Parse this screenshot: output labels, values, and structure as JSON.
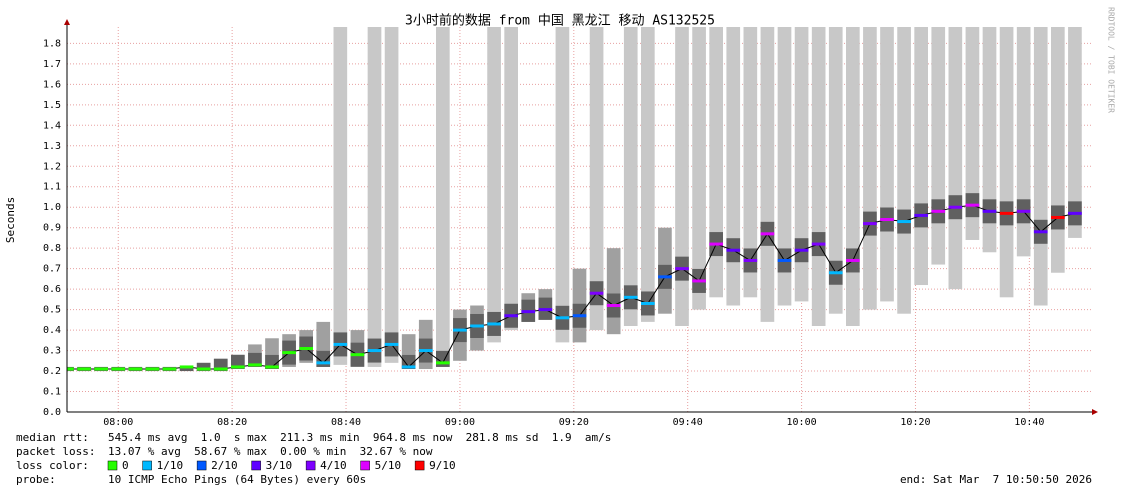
{
  "chart_data": {
    "type": "smokeping",
    "title": "3小时前的数据 from 中国 黑龙江 移动 AS132525",
    "y_label": "Seconds",
    "watermark": "RRDTOOL / TOBI OETIKER",
    "xlim": [
      "07:51",
      "10:51"
    ],
    "xticks": [
      "08:00",
      "08:20",
      "08:40",
      "09:00",
      "09:20",
      "09:40",
      "10:00",
      "10:20",
      "10:40"
    ],
    "ylim": [
      0,
      1.88
    ],
    "yticks": [
      {
        "value": 0,
        "label": "0.0"
      },
      0.1,
      0.2,
      0.3,
      0.4,
      0.5,
      0.6,
      0.7,
      0.8,
      0.9,
      {
        "value": 1,
        "label": "1.0"
      },
      1.1,
      1.2,
      1.3,
      1.4,
      1.5,
      1.6,
      1.7,
      1.8
    ],
    "grid": true,
    "x": [
      "07:51",
      "07:54",
      "07:57",
      "08:00",
      "08:03",
      "08:06",
      "08:09",
      "08:12",
      "08:15",
      "08:18",
      "08:21",
      "08:24",
      "08:27",
      "08:30",
      "08:33",
      "08:36",
      "08:39",
      "08:42",
      "08:45",
      "08:48",
      "08:51",
      "08:54",
      "08:57",
      "09:00",
      "09:03",
      "09:06",
      "09:09",
      "09:12",
      "09:15",
      "09:18",
      "09:21",
      "09:24",
      "09:27",
      "09:30",
      "09:33",
      "09:36",
      "09:39",
      "09:42",
      "09:45",
      "09:48",
      "09:51",
      "09:54",
      "09:57",
      "10:00",
      "10:03",
      "10:06",
      "10:09",
      "10:12",
      "10:15",
      "10:18",
      "10:21",
      "10:24",
      "10:27",
      "10:30",
      "10:33",
      "10:36",
      "10:39",
      "10:42",
      "10:45",
      "10:48"
    ],
    "median": [
      0.21,
      0.21,
      0.21,
      0.21,
      0.21,
      0.21,
      0.21,
      0.22,
      0.21,
      0.21,
      0.22,
      0.23,
      0.22,
      0.29,
      0.31,
      0.24,
      0.33,
      0.28,
      0.3,
      0.33,
      0.22,
      0.3,
      0.24,
      0.4,
      0.42,
      0.43,
      0.47,
      0.49,
      0.5,
      0.46,
      0.47,
      0.58,
      0.52,
      0.56,
      0.53,
      0.66,
      0.7,
      0.64,
      0.82,
      0.79,
      0.74,
      0.87,
      0.74,
      0.79,
      0.82,
      0.68,
      0.74,
      0.92,
      0.94,
      0.93,
      0.96,
      0.98,
      1.0,
      1.01,
      0.98,
      0.97,
      0.98,
      0.88,
      0.95,
      0.97
    ],
    "min": [
      0.2,
      0.2,
      0.2,
      0.2,
      0.2,
      0.2,
      0.2,
      0.2,
      0.2,
      0.2,
      0.21,
      0.22,
      0.21,
      0.22,
      0.24,
      0.22,
      0.23,
      0.22,
      0.22,
      0.24,
      0.21,
      0.21,
      0.22,
      0.25,
      0.3,
      0.34,
      0.4,
      0.44,
      0.45,
      0.34,
      0.34,
      0.4,
      0.38,
      0.42,
      0.44,
      0.48,
      0.42,
      0.5,
      0.56,
      0.52,
      0.56,
      0.44,
      0.52,
      0.54,
      0.42,
      0.48,
      0.42,
      0.5,
      0.54,
      0.48,
      0.62,
      0.72,
      0.6,
      0.84,
      0.78,
      0.56,
      0.76,
      0.52,
      0.68,
      0.85
    ],
    "max": [
      0.22,
      0.22,
      0.22,
      0.22,
      0.22,
      0.22,
      0.22,
      0.22,
      0.24,
      0.26,
      0.28,
      0.33,
      0.36,
      0.38,
      0.4,
      0.44,
      1.88,
      0.4,
      1.88,
      1.88,
      0.38,
      0.45,
      1.88,
      0.5,
      0.52,
      1.88,
      1.88,
      0.58,
      0.6,
      1.88,
      0.7,
      1.88,
      0.8,
      1.88,
      1.88,
      0.9,
      1.88,
      1.88,
      1.88,
      1.88,
      1.88,
      1.88,
      1.88,
      1.88,
      1.88,
      1.88,
      1.88,
      1.88,
      1.88,
      1.88,
      1.88,
      1.88,
      1.88,
      1.88,
      1.88,
      1.88,
      1.88,
      1.88,
      1.88,
      1.88
    ],
    "loss": [
      0,
      0,
      0,
      0,
      0,
      0,
      0,
      0,
      0,
      0,
      0,
      0,
      0,
      0,
      0,
      1,
      1,
      0,
      1,
      1,
      1,
      1,
      0,
      1,
      1,
      1,
      3,
      3,
      3,
      1,
      2,
      4,
      5,
      1,
      1,
      2,
      4,
      5,
      5,
      3,
      4,
      5,
      2,
      3,
      4,
      1,
      5,
      4,
      5,
      1,
      3,
      5,
      4,
      5,
      3,
      9,
      4,
      3,
      9,
      3
    ],
    "loss_legend_label": "loss color:",
    "loss_colors": [
      {
        "label": "0",
        "value": 0,
        "color": "#26ff00"
      },
      {
        "label": "1/10",
        "value": 1,
        "color": "#00b8ff"
      },
      {
        "label": "2/10",
        "value": 2,
        "color": "#0059ff"
      },
      {
        "label": "3/10",
        "value": 3,
        "color": "#5e00ff"
      },
      {
        "label": "4/10",
        "value": 4,
        "color": "#7e00ff"
      },
      {
        "label": "5/10",
        "value": 5,
        "color": "#dd00ff"
      },
      {
        "label": "9/10",
        "value": 9,
        "color": "#ff0000"
      }
    ],
    "stats": [
      {
        "label": "median rtt:",
        "text": "545.4 ms avg  1.0  s max  211.3 ms min  964.8 ms now  281.8 ms sd  1.9  am/s"
      },
      {
        "label": "packet loss:",
        "text": "13.07 % avg  58.67 % max  0.00 % min  32.67 % now"
      }
    ],
    "probe_label": "probe:",
    "probe": "10 ICMP Echo Pings (64 Bytes) every 60s",
    "end": "end: Sat Mar  7 10:50:50 2026"
  }
}
